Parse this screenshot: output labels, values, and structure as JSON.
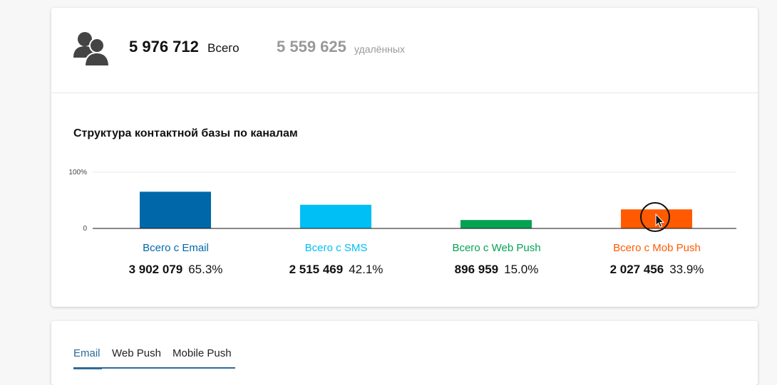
{
  "summary": {
    "total_value": "5 976 712",
    "total_label": "Всего",
    "deleted_value": "5 559 625",
    "deleted_label": "удалённых"
  },
  "chart_section": {
    "title": "Структура контактной базы по каналам"
  },
  "chart_data": {
    "type": "bar",
    "categories": [
      "Всего с Email",
      "Всего с SMS",
      "Всего с Web Push",
      "Всего с Mob Push"
    ],
    "values": [
      65.3,
      42.1,
      15.0,
      33.9
    ],
    "counts": [
      "3 902 079",
      "2 515 469",
      "896 959",
      "2 027 456"
    ],
    "percent_labels": [
      "65.3%",
      "42.1%",
      "15.0%",
      "33.9%"
    ],
    "colors": [
      "#0068a8",
      "#00bff5",
      "#04a353",
      "#ff5a00"
    ],
    "ylim": [
      0,
      100
    ],
    "yticks": [
      "0",
      "100%"
    ],
    "grid": true,
    "legend": "none"
  },
  "tabs": [
    {
      "label": "Email"
    },
    {
      "label": "Web Push"
    },
    {
      "label": "Mobile Push"
    }
  ],
  "active_tab": "Email",
  "icons": {
    "contacts": "contacts-icon",
    "cursor": "mouse-pointer-icon"
  }
}
